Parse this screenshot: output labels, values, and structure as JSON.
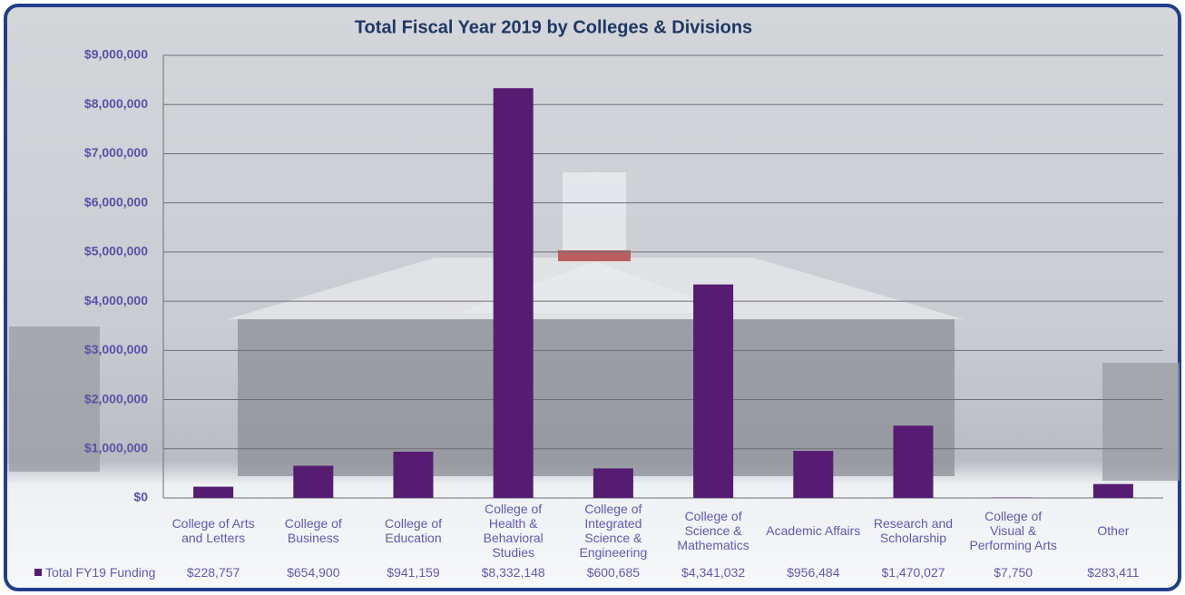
{
  "chart_data": {
    "type": "bar",
    "title": "Total Fiscal Year 2019 by Colleges & Divisions",
    "categories": [
      "College of Arts and Letters",
      "College of Business",
      "College of Education",
      "College of Health & Behavioral Studies",
      "College of Integrated Science & Engineering",
      "College of Science & Mathematics",
      "Academic Affairs",
      "Research and Scholarship",
      "College of Visual & Performing Arts",
      "Other"
    ],
    "series": [
      {
        "name": "Total FY19 Funding",
        "color": "#561c72",
        "values": [
          228757,
          654900,
          941159,
          8332148,
          600685,
          4341032,
          956484,
          1470027,
          7750,
          283411
        ],
        "value_labels": [
          "$228,757",
          "$654,900",
          "$941,159",
          "$8,332,148",
          "$600,685",
          "$4,341,032",
          "$956,484",
          "$1,470,027",
          "$7,750",
          "$283,411"
        ]
      }
    ],
    "ylim": [
      0,
      9000000
    ],
    "yticks": [
      {
        "value": 0,
        "label": "$0"
      },
      {
        "value": 1000000,
        "label": "$1,000,000"
      },
      {
        "value": 2000000,
        "label": "$2,000,000"
      },
      {
        "value": 3000000,
        "label": "$3,000,000"
      },
      {
        "value": 4000000,
        "label": "$4,000,000"
      },
      {
        "value": 5000000,
        "label": "$5,000,000"
      },
      {
        "value": 6000000,
        "label": "$6,000,000"
      },
      {
        "value": 7000000,
        "label": "$7,000,000"
      },
      {
        "value": 8000000,
        "label": "$8,000,000"
      },
      {
        "value": 9000000,
        "label": "$9,000,000"
      }
    ],
    "grid": true
  }
}
